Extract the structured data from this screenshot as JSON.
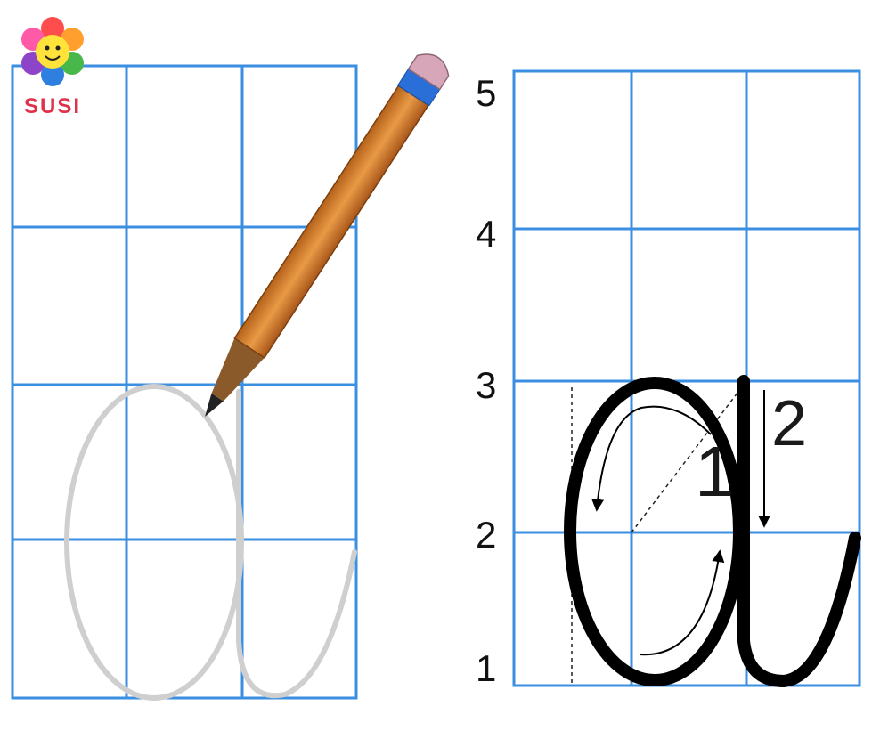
{
  "logo": {
    "text": "SUSI",
    "icon": "flower-smiley-icon"
  },
  "row_labels": [
    "5",
    "4",
    "3",
    "2",
    "1"
  ],
  "step_labels": [
    "1",
    "2"
  ],
  "colors": {
    "grid": "#3b8fe0",
    "trace": "#cfcfcf",
    "ink": "#000000",
    "pencil_body": "#d9822b",
    "pencil_eraser": "#d7a6b8",
    "pencil_band": "#2a6fd8"
  }
}
